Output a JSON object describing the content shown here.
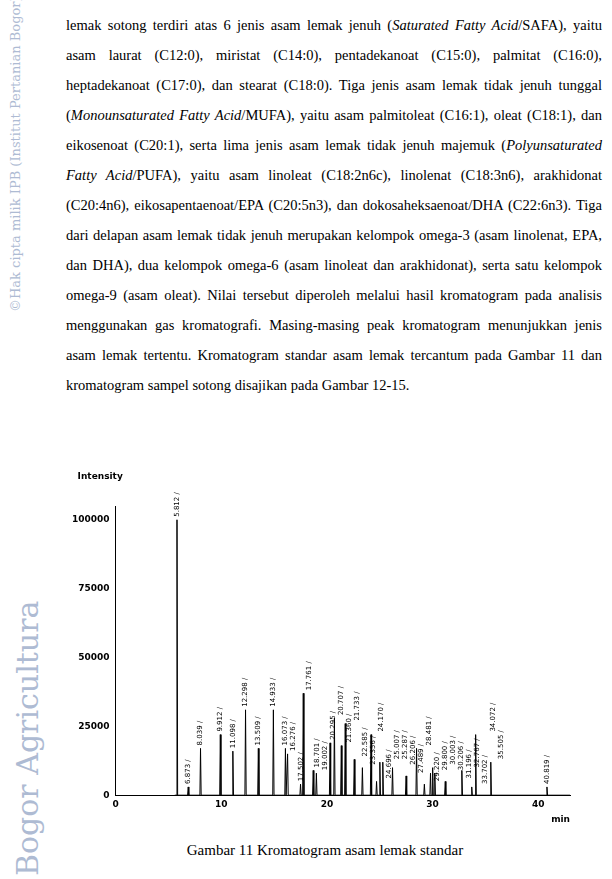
{
  "page": {
    "watermarks": [
      "©Hak cipta milik IPB (Institut Pertanian Bogor)",
      "Bogor Agricultura"
    ],
    "paragraph": [
      {
        "text": "lemak sotong terdiri atas 6 jenis asam lemak jenuh (",
        "italic": false
      },
      {
        "text": "Saturated Fatty Acid",
        "italic": true
      },
      {
        "text": "/SAFA), yaitu asam laurat (C12:0), miristat (C14:0), pentadekanoat (C15:0), palmitat (C16:0), heptadekanoat (C17:0), dan stearat (C18:0). Tiga jenis asam lemak tidak jenuh tunggal (",
        "italic": false
      },
      {
        "text": "Monounsaturated Fatty Acid",
        "italic": true
      },
      {
        "text": "/MUFA), yaitu asam palmitoleat (C16:1), oleat (C18:1), dan eikosenoat (C20:1), serta lima jenis asam lemak tidak jenuh majemuk (",
        "italic": false
      },
      {
        "text": "Polyunsaturated Fatty Acid",
        "italic": true
      },
      {
        "text": "/PUFA), yaitu asam linoleat (C18:2n6c), linolenat (C18:3n6), arakhidonat (C20:4n6), eikosapentaenoat/EPA (C20:5n3), dan dokosaheksaenoat/DHA (C22:6n3). Tiga dari delapan asam lemak tidak jenuh merupakan kelompok omega-3 (asam linolenat, EPA, dan DHA), dua kelompok omega-6 (asam linoleat dan arakhidonat), serta satu kelompok omega-9 (asam oleat). Nilai tersebut diperoleh melalui hasil kromatogram pada analisis menggunakan gas kromatografi. Masing-masing peak kromatogram menunjukkan jenis asam lemak tertentu. Kromatogram standar asam lemak tercantum pada Gambar 11 dan kromatogram sampel sotong disajikan pada Gambar 12-15.",
        "italic": false
      }
    ],
    "caption": "Gambar 11 Kromatogram asam lemak standar"
  },
  "chart_data": {
    "type": "line",
    "x_label": "min",
    "y_label": "Intensity",
    "color": "#000000",
    "grid": false,
    "xlim": [
      0,
      43
    ],
    "ylim": [
      0,
      105000
    ],
    "xticks": [
      0,
      10,
      20,
      30,
      40
    ],
    "yticks": [
      0,
      25000,
      50000,
      75000,
      100000
    ],
    "x": [
      5.6,
      5.752,
      5.812,
      5.872,
      6.813,
      6.873,
      6.933,
      7.979,
      8.039,
      8.099,
      9.852,
      9.912,
      9.972,
      11.038,
      11.098,
      11.158,
      12.238,
      12.298,
      12.358,
      13.449,
      13.509,
      13.569,
      14.873,
      14.933,
      14.993,
      16.013,
      16.073,
      16.133,
      16.216,
      16.276,
      16.336,
      17.442,
      17.502,
      17.562,
      17.701,
      17.761,
      17.821,
      18.641,
      18.701,
      18.761,
      18.942,
      19.002,
      19.062,
      20.235,
      20.295,
      20.355,
      20.647,
      20.707,
      20.767,
      21.3,
      21.36,
      21.42,
      21.673,
      21.733,
      21.793,
      22.525,
      22.585,
      22.645,
      23.296,
      23.356,
      23.416,
      24.11,
      24.17,
      24.23,
      24.636,
      24.696,
      24.756,
      24.947,
      25.007,
      25.067,
      25.227,
      25.287,
      25.347,
      26.146,
      26.206,
      26.266,
      27.429,
      27.489,
      27.549,
      28.421,
      28.481,
      28.541,
      29.16,
      29.22,
      29.28,
      29.74,
      29.8,
      29.86,
      29.943,
      30.003,
      30.063,
      30.146,
      30.206,
      30.266,
      31.136,
      31.196,
      31.256,
      32.707,
      32.767,
      32.827,
      33.642,
      33.702,
      33.762,
      34.012,
      34.072,
      34.132,
      35.445,
      35.505,
      35.565,
      40.759,
      40.819,
      40.879,
      43
    ],
    "values": [
      0,
      0,
      100000,
      0,
      0,
      3000,
      0,
      0,
      17000,
      0,
      0,
      22000,
      0,
      0,
      16000,
      0,
      0,
      31000,
      0,
      0,
      17000,
      0,
      0,
      31000,
      0,
      0,
      17000,
      0,
      0,
      15000,
      0,
      0,
      4000,
      0,
      0,
      37000,
      0,
      0,
      9000,
      0,
      0,
      8000,
      0,
      0,
      19000,
      0,
      0,
      28000,
      0,
      0,
      18000,
      0,
      0,
      26000,
      0,
      0,
      13000,
      0,
      0,
      10000,
      0,
      0,
      22000,
      0,
      0,
      5000,
      0,
      0,
      12000,
      0,
      0,
      12000,
      0,
      0,
      10000,
      0,
      0,
      7000,
      0,
      0,
      17000,
      0,
      0,
      4000,
      0,
      0,
      8000,
      0,
      0,
      10000,
      0,
      0,
      8000,
      0,
      0,
      5000,
      0,
      0,
      9000,
      0,
      0,
      3000,
      0,
      0,
      22000,
      0,
      0,
      12000,
      0,
      0,
      3000,
      0,
      0
    ],
    "annotations": [
      {
        "x": 5.812,
        "y": 100000,
        "text": "5.812 /"
      },
      {
        "x": 6.873,
        "y": 3000,
        "text": "6.873 /"
      },
      {
        "x": 8.039,
        "y": 17000,
        "text": "8.039 /"
      },
      {
        "x": 9.912,
        "y": 22000,
        "text": "9.912 /"
      },
      {
        "x": 11.098,
        "y": 16000,
        "text": "11.098 /"
      },
      {
        "x": 12.298,
        "y": 31000,
        "text": "12.298 /"
      },
      {
        "x": 13.509,
        "y": 17000,
        "text": "13.509 /"
      },
      {
        "x": 14.933,
        "y": 31000,
        "text": "14.933 /"
      },
      {
        "x": 16.073,
        "y": 17000,
        "text": "16.073 /"
      },
      {
        "x": 16.276,
        "y": 15000,
        "text": "16.276 /"
      },
      {
        "x": 17.502,
        "y": 4000,
        "text": "17.502 /"
      },
      {
        "x": 17.761,
        "y": 37000,
        "text": "17.761 /"
      },
      {
        "x": 18.701,
        "y": 9000,
        "text": "18.701 /"
      },
      {
        "x": 19.002,
        "y": 8000,
        "text": "19.002 /"
      },
      {
        "x": 20.295,
        "y": 19000,
        "text": "20.295 /"
      },
      {
        "x": 20.707,
        "y": 28000,
        "text": "20.707 /"
      },
      {
        "x": 21.36,
        "y": 18000,
        "text": "21.360 /"
      },
      {
        "x": 21.733,
        "y": 26000,
        "text": "21.733 /"
      },
      {
        "x": 22.585,
        "y": 13000,
        "text": "22.585 /"
      },
      {
        "x": 23.356,
        "y": 10000,
        "text": "23.356 /"
      },
      {
        "x": 24.17,
        "y": 22000,
        "text": "24.170 /"
      },
      {
        "x": 24.696,
        "y": 5000,
        "text": "24.696 /"
      },
      {
        "x": 25.007,
        "y": 12000,
        "text": "25.007 /"
      },
      {
        "x": 25.287,
        "y": 12000,
        "text": "25.287 /"
      },
      {
        "x": 26.206,
        "y": 10000,
        "text": "26.206 /"
      },
      {
        "x": 27.489,
        "y": 7000,
        "text": "27.489 /"
      },
      {
        "x": 28.481,
        "y": 17000,
        "text": "28.481 /"
      },
      {
        "x": 29.22,
        "y": 4000,
        "text": "29.220 /"
      },
      {
        "x": 29.8,
        "y": 8000,
        "text": "29.800 /"
      },
      {
        "x": 30.003,
        "y": 10000,
        "text": "30.003 /"
      },
      {
        "x": 30.206,
        "y": 8000,
        "text": "30.206 /"
      },
      {
        "x": 31.196,
        "y": 5000,
        "text": "31.196 /"
      },
      {
        "x": 32.767,
        "y": 9000,
        "text": "32.767 /"
      },
      {
        "x": 33.702,
        "y": 3000,
        "text": "33.702 /"
      },
      {
        "x": 34.072,
        "y": 22000,
        "text": "34.072 /"
      },
      {
        "x": 35.505,
        "y": 12000,
        "text": "35.505 /"
      },
      {
        "x": 40.819,
        "y": 3000,
        "text": "40.819 /"
      }
    ]
  }
}
